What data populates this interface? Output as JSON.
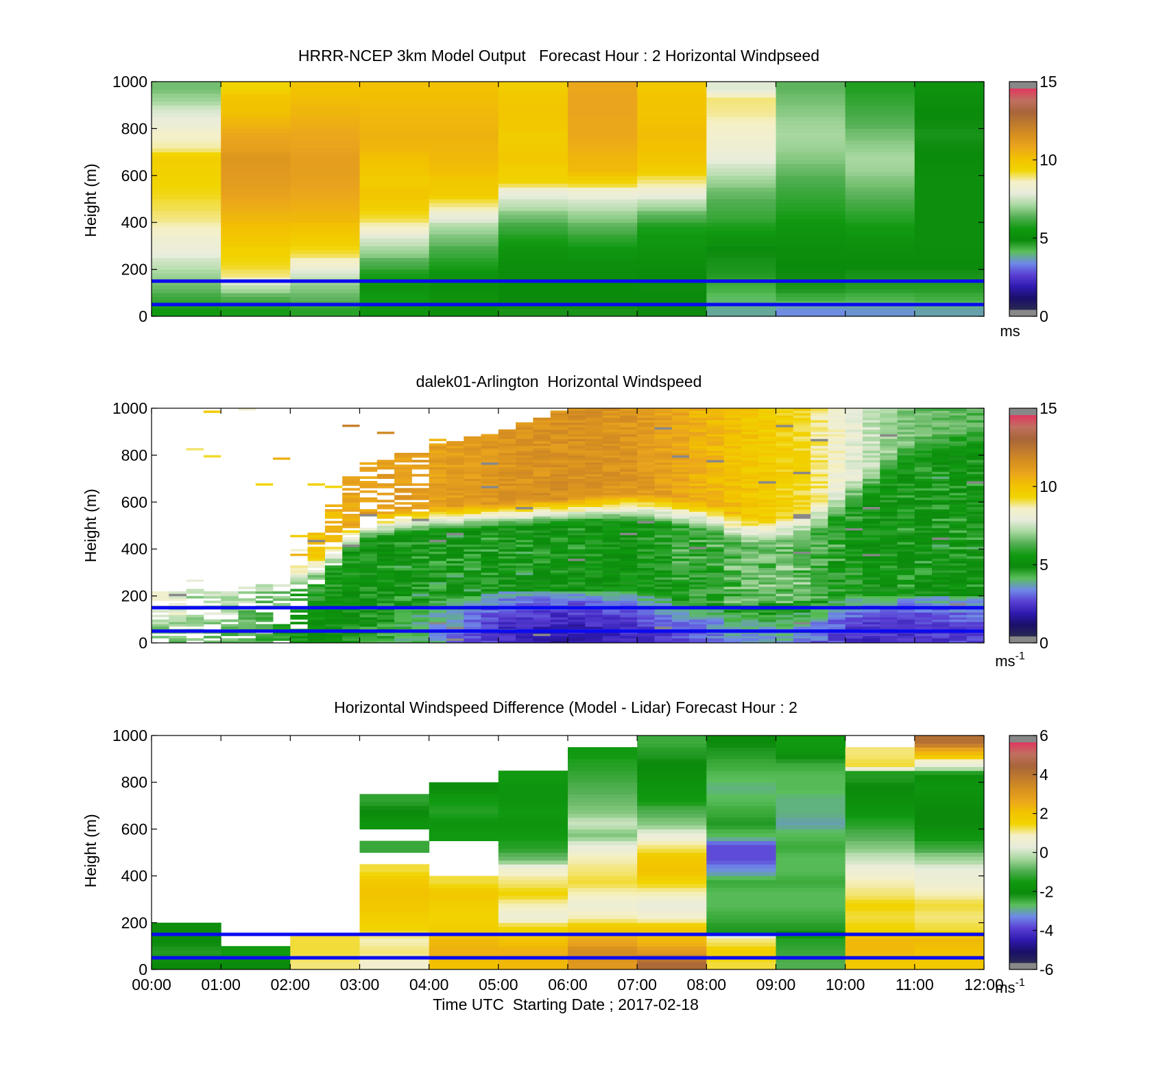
{
  "chart_data": [
    {
      "type": "heatmap",
      "title": "HRRR-NCEP 3km Model Output   Forecast Hour : 2 Horizontal Windpseed",
      "ylabel": "Height (m)",
      "xlabel": "",
      "ylim": [
        0,
        1000
      ],
      "xlim_hours": [
        0,
        12
      ],
      "yticks": [
        "0",
        "200",
        "400",
        "600",
        "800",
        "1000"
      ],
      "xtick_labels_shown": false,
      "colorbar": {
        "ticks": [
          "0",
          "5",
          "10",
          "15"
        ],
        "min": 0,
        "max": 15,
        "unit": "ms",
        "unit_sup": ""
      },
      "reference_lines_m": [
        50,
        150
      ],
      "heights_m": [
        25,
        75,
        125,
        175,
        225,
        275,
        325,
        375,
        425,
        475,
        525,
        575,
        625,
        675,
        725,
        775,
        825,
        875,
        925,
        975
      ],
      "time_columns_hours": [
        0.5,
        1.5,
        2.5,
        3.5,
        4.5,
        5.5,
        6.5,
        7.5,
        8.5,
        9.5,
        10.5,
        11.5
      ],
      "values_by_time": [
        [
          5.5,
          6.0,
          6.5,
          7.0,
          7.5,
          8.0,
          8.3,
          8.7,
          9.0,
          9.2,
          9.4,
          9.5,
          9.6,
          9.7,
          8.8,
          8.6,
          8.1,
          7.7,
          7.0,
          6.6
        ],
        [
          5.6,
          6.2,
          7.3,
          9.0,
          9.4,
          9.6,
          10.0,
          10.3,
          10.6,
          10.9,
          11.2,
          11.4,
          11.5,
          11.6,
          11.2,
          11.0,
          10.6,
          10.3,
          10.2,
          9.5
        ],
        [
          5.8,
          6.4,
          6.8,
          7.6,
          8.5,
          9.3,
          9.8,
          10.2,
          10.6,
          10.8,
          11.0,
          11.2,
          11.3,
          11.3,
          11.1,
          11.0,
          10.8,
          10.6,
          10.4,
          10.2
        ],
        [
          5.3,
          5.5,
          5.2,
          5.6,
          6.2,
          7.0,
          7.6,
          8.6,
          9.3,
          9.8,
          10.1,
          9.8,
          10.1,
          10.3,
          10.6,
          10.7,
          10.6,
          10.5,
          10.4,
          10.3
        ],
        [
          5.0,
          5.2,
          5.0,
          5.2,
          5.7,
          6.1,
          6.6,
          7.1,
          8.0,
          9.0,
          9.9,
          10.0,
          10.4,
          10.5,
          10.6,
          10.7,
          10.6,
          10.5,
          10.4,
          10.3
        ],
        [
          4.6,
          4.8,
          4.8,
          4.9,
          5.0,
          5.2,
          5.6,
          6.0,
          6.6,
          7.4,
          8.0,
          9.5,
          9.7,
          10.0,
          9.9,
          9.8,
          10.0,
          10.1,
          10.0,
          9.8
        ],
        [
          4.6,
          4.8,
          4.8,
          4.9,
          5.0,
          5.3,
          5.8,
          6.3,
          6.9,
          7.5,
          8.2,
          9.6,
          10.5,
          10.6,
          10.8,
          11.0,
          11.0,
          11.1,
          11.1,
          11.0
        ],
        [
          4.7,
          4.8,
          4.7,
          4.8,
          5.0,
          5.2,
          5.4,
          5.6,
          6.3,
          7.2,
          8.1,
          9.0,
          9.8,
          10.1,
          10.3,
          10.4,
          10.3,
          10.2,
          10.2,
          10.0
        ],
        [
          3.6,
          3.9,
          4.2,
          4.5,
          4.6,
          4.7,
          5.2,
          5.6,
          6.0,
          6.2,
          6.5,
          7.0,
          7.5,
          8.0,
          8.3,
          8.5,
          8.7,
          8.9,
          9.0,
          7.8
        ],
        [
          3.2,
          4.2,
          4.6,
          4.7,
          4.8,
          4.9,
          5.1,
          5.3,
          5.6,
          5.8,
          6.0,
          6.2,
          6.5,
          6.8,
          7.0,
          7.1,
          7.0,
          6.8,
          6.6,
          6.4
        ],
        [
          3.3,
          4.1,
          4.5,
          4.6,
          4.8,
          5.0,
          5.2,
          5.5,
          5.8,
          6.1,
          6.4,
          6.7,
          7.0,
          7.1,
          6.9,
          6.6,
          6.3,
          6.1,
          5.9,
          5.7
        ],
        [
          3.5,
          4.2,
          4.5,
          4.6,
          4.8,
          4.9,
          5.0,
          5.0,
          5.0,
          5.0,
          5.0,
          5.0,
          4.9,
          4.8,
          4.7,
          4.6,
          4.7,
          4.8,
          5.0,
          5.2
        ]
      ]
    },
    {
      "type": "heatmap",
      "title": "dalek01-Arlington  Horizontal Windspeed",
      "ylabel": "Height (m)",
      "xlabel": "",
      "ylim": [
        0,
        1000
      ],
      "xlim_hours": [
        0,
        12
      ],
      "yticks": [
        "0",
        "200",
        "400",
        "600",
        "800",
        "1000"
      ],
      "xtick_labels_shown": false,
      "colorbar": {
        "ticks": [
          "0",
          "5",
          "10",
          "15"
        ],
        "min": 0,
        "max": 15,
        "unit": "ms",
        "unit_sup": "-1"
      },
      "reference_lines_m": [
        50,
        150
      ],
      "time_resolution_hours": 0.25,
      "vertical_resolution_m": 10,
      "profile_shape": {
        "time_hours": [
          0.0,
          1.0,
          2.0,
          2.5,
          3.0,
          3.5,
          4.0,
          5.0,
          6.0,
          7.0,
          8.0,
          8.5,
          9.0,
          9.5,
          10.0,
          10.5,
          11.0,
          12.0
        ],
        "data_top_m": [
          220,
          230,
          260,
          560,
          760,
          800,
          840,
          900,
          1000,
          1000,
          1000,
          1000,
          1000,
          1000,
          1000,
          1000,
          1000,
          1000
        ],
        "low_jet_speed": [
          6.5,
          6.5,
          5.6,
          5.0,
          4.5,
          4.2,
          3.6,
          2.0,
          1.5,
          2.0,
          2.8,
          3.2,
          3.5,
          3.0,
          2.2,
          2.0,
          2.0,
          2.4
        ],
        "low_layer_top_m": [
          120,
          120,
          150,
          200,
          230,
          200,
          180,
          220,
          220,
          220,
          180,
          160,
          170,
          180,
          200,
          200,
          200,
          200
        ],
        "mid_speed": [
          8.5,
          7.2,
          6.2,
          6.0,
          5.0,
          4.8,
          4.6,
          4.6,
          4.8,
          5.4,
          6.0,
          6.4,
          6.6,
          6.4,
          5.6,
          5.0,
          4.8,
          4.8
        ],
        "transition_height_m": [
          200,
          200,
          200,
          280,
          420,
          450,
          460,
          480,
          500,
          520,
          480,
          420,
          420,
          460,
          560,
          650,
          760,
          800
        ],
        "upper_speed": [
          8.5,
          8.5,
          9.5,
          10.4,
          11.2,
          11.4,
          11.2,
          11.6,
          11.8,
          11.6,
          10.6,
          10.2,
          9.8,
          9.2,
          8.2,
          7.2,
          6.6,
          6.2
        ]
      }
    },
    {
      "type": "heatmap",
      "title": "Horizontal Windspeed Difference (Model - Lidar) Forecast Hour : 2",
      "ylabel": "Height (m)",
      "xlabel": "Time UTC  Starting Date ; 2017-02-18",
      "ylim": [
        0,
        1000
      ],
      "xlim_hours": [
        0,
        12
      ],
      "xticks": [
        "00:00",
        "01:00",
        "02:00",
        "03:00",
        "04:00",
        "05:00",
        "06:00",
        "07:00",
        "08:00",
        "09:00",
        "10:00",
        "11:00",
        "12:00"
      ],
      "yticks": [
        "0",
        "200",
        "400",
        "600",
        "800",
        "1000"
      ],
      "colorbar": {
        "ticks": [
          "-6",
          "-4",
          "-2",
          "0",
          "2",
          "4",
          "6"
        ],
        "min": -6,
        "max": 6,
        "unit": "ms",
        "unit_sup": "-1"
      },
      "reference_lines_m": [
        50,
        150
      ],
      "heights_m": [
        25,
        75,
        125,
        175,
        225,
        275,
        325,
        375,
        425,
        475,
        525,
        575,
        625,
        675,
        725,
        775,
        825,
        875,
        925,
        975
      ],
      "time_columns_hours": [
        0.5,
        1.5,
        2.5,
        3.5,
        4.5,
        5.5,
        6.5,
        7.5,
        8.5,
        9.5,
        10.5,
        11.5
      ],
      "values_by_time": [
        [
          -2.2,
          -2.4,
          -2.2,
          -2.0,
          null,
          null,
          null,
          null,
          null,
          null,
          null,
          null,
          null,
          null,
          null,
          null,
          null,
          null,
          null,
          null
        ],
        [
          -2.2,
          -1.6,
          null,
          null,
          null,
          null,
          null,
          null,
          null,
          null,
          null,
          null,
          null,
          null,
          null,
          null,
          null,
          null,
          null,
          null
        ],
        [
          1.2,
          1.4,
          1.4,
          null,
          null,
          null,
          null,
          null,
          null,
          null,
          null,
          null,
          null,
          null,
          null,
          null,
          null,
          null,
          null,
          null
        ],
        [
          0.8,
          1.2,
          1.0,
          1.6,
          1.8,
          2.0,
          2.2,
          2.0,
          1.4,
          null,
          -1.2,
          null,
          -1.8,
          -2.2,
          -2.5,
          null,
          null,
          null,
          null,
          null
        ],
        [
          2.2,
          2.6,
          2.4,
          1.8,
          1.6,
          1.8,
          2.0,
          1.4,
          null,
          null,
          null,
          -1.6,
          -1.8,
          -1.4,
          -1.6,
          -2.0,
          null,
          null,
          null,
          null
        ],
        [
          2.4,
          2.6,
          2.2,
          1.6,
          0.6,
          1.0,
          1.6,
          1.2,
          0.8,
          -0.8,
          -1.4,
          -1.6,
          -1.8,
          -1.6,
          -1.8,
          -1.8,
          -1.6,
          null,
          null,
          null
        ],
        [
          3.2,
          3.6,
          2.8,
          2.0,
          1.0,
          0.6,
          1.0,
          1.4,
          1.2,
          1.0,
          0.4,
          -0.6,
          0.0,
          -0.6,
          -0.8,
          -1.0,
          -1.2,
          -1.4,
          -1.6,
          null
        ],
        [
          4.6,
          3.2,
          2.4,
          2.0,
          0.8,
          0.4,
          1.0,
          1.6,
          2.2,
          2.0,
          1.2,
          0.4,
          -0.6,
          -1.0,
          -1.6,
          -1.8,
          -2.0,
          -2.2,
          -2.4,
          -2.6
        ],
        [
          1.4,
          1.8,
          1.2,
          -2.4,
          -2.6,
          -2.8,
          -2.8,
          -2.6,
          -3.4,
          -4.0,
          -4.0,
          -2.8,
          -2.4,
          -2.6,
          -2.8,
          -3.0,
          -2.8,
          -2.6,
          -2.4,
          -2.2
        ],
        [
          -1.0,
          -1.2,
          -1.4,
          -2.4,
          -2.6,
          -2.8,
          -2.8,
          -2.6,
          -2.8,
          -2.8,
          -2.6,
          -2.8,
          -3.2,
          -3.0,
          -3.0,
          -2.8,
          -2.8,
          -2.6,
          -1.8,
          -1.6
        ],
        [
          2.0,
          2.4,
          2.4,
          1.6,
          1.4,
          1.6,
          1.2,
          1.0,
          0.6,
          0.0,
          -0.6,
          -1.0,
          -1.4,
          -1.8,
          -2.0,
          -2.2,
          -2.4,
          1.4,
          1.2,
          null
        ],
        [
          2.0,
          2.2,
          2.4,
          1.4,
          1.2,
          1.4,
          1.0,
          0.6,
          0.4,
          -0.4,
          -1.2,
          -1.8,
          -2.2,
          -2.2,
          -2.0,
          -1.8,
          -2.0,
          0.4,
          2.4,
          4.4
        ]
      ]
    }
  ],
  "colormap_speed": [
    "#2a2a52",
    "#1a0f6a",
    "#2f1ab0",
    "#5a3fd4",
    "#6f8ae8",
    "#5bbf5b",
    "#0b8a0b",
    "#119a11",
    "#55b055",
    "#a8d8a0",
    "#e8ecdc",
    "#f4f0c8",
    "#f1d400",
    "#f2c200",
    "#eba51d",
    "#d7901f",
    "#bf7a2e",
    "#a8653a",
    "#c07060",
    "#e03a60",
    "#d93048",
    "#888888"
  ],
  "colors": {
    "reference_line": "#0a0af0",
    "missing": "#ffffff",
    "frame": "#000000"
  }
}
